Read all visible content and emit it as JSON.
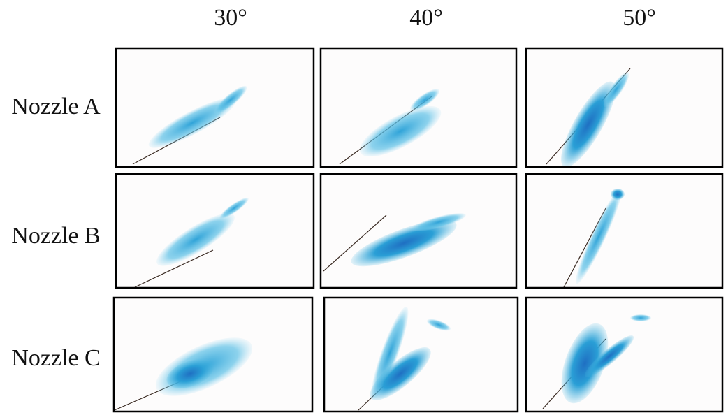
{
  "columns": [
    "30°",
    "40°",
    "50°"
  ],
  "rows": [
    "Nozzle A",
    "Nozzle B",
    "Nozzle C"
  ]
}
